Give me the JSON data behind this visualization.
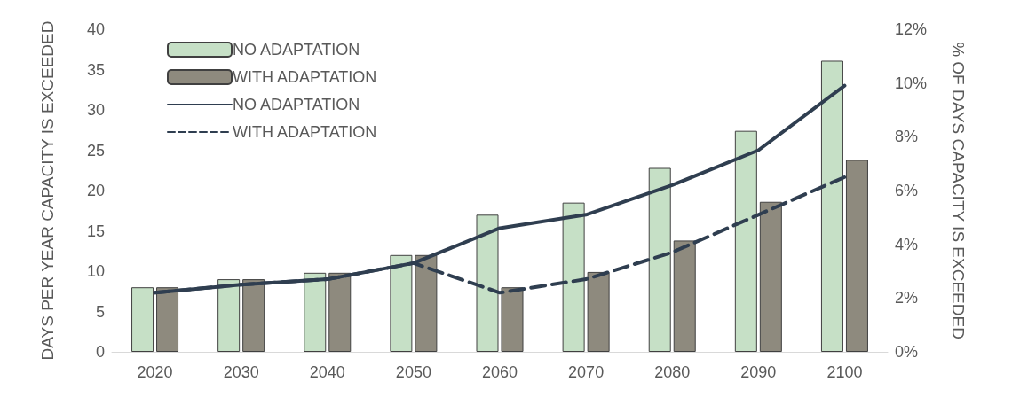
{
  "chart_data": {
    "type": "bar",
    "categories": [
      "2020",
      "2030",
      "2040",
      "2050",
      "2060",
      "2070",
      "2080",
      "2090",
      "2100"
    ],
    "ylabel": "DAYS PER YEAR CAPACITY IS EXCEEDED",
    "y2label": "% OF DAYS CAPACITY IS EXCEEDED",
    "series": [
      {
        "name": "NO ADAPTATION",
        "color": "#c6e0c6",
        "values": [
          8,
          9,
          9.8,
          12,
          17,
          18.5,
          22.8,
          27.4,
          36.1
        ]
      },
      {
        "name": "WITH ADAPTATION",
        "color": "#8e8a7e",
        "values": [
          8,
          9,
          9.8,
          12,
          8,
          9.9,
          13.8,
          18.6,
          23.8
        ]
      },
      {
        "name": "NO ADAPTATION",
        "type": "line",
        "axis": "y2",
        "color": "#2f3e50",
        "line_style": "solid",
        "values": [
          2.2,
          2.5,
          2.7,
          3.3,
          4.6,
          5.1,
          6.2,
          7.5,
          9.9
        ]
      },
      {
        "name": "WITH ADAPTATION",
        "type": "line",
        "axis": "y2",
        "color": "#2f3e50",
        "line_style": "dashed",
        "values": [
          2.2,
          2.5,
          2.7,
          3.3,
          2.2,
          2.7,
          3.7,
          5.1,
          6.5
        ]
      }
    ],
    "ylim": [
      0,
      40
    ],
    "yticks": [
      0,
      5,
      10,
      15,
      20,
      25,
      30,
      35,
      40
    ],
    "y2lim": [
      0,
      12
    ],
    "y2ticks": [
      {
        "value": 0,
        "label": "0%"
      },
      {
        "value": 2,
        "label": "2%"
      },
      {
        "value": 4,
        "label": "4%"
      },
      {
        "value": 6,
        "label": "6%"
      },
      {
        "value": 8,
        "label": "8%"
      },
      {
        "value": 10,
        "label": "10%"
      },
      {
        "value": 12,
        "label": "12%"
      }
    ],
    "legend": "top left",
    "grid": false,
    "marker": "none"
  }
}
